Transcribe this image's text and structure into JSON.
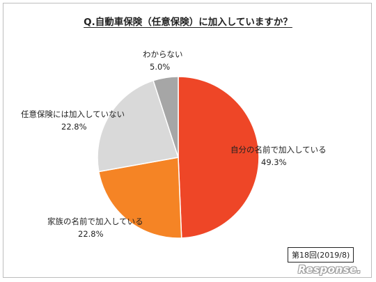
{
  "chart_data": {
    "type": "pie",
    "title": "Q.自動車保険（任意保険）に加入していますか？",
    "start_angle_deg": 0,
    "direction": "clockwise",
    "slices": [
      {
        "label": "自分の名前で加入している",
        "value": 49.3,
        "value_label": "49.3%",
        "color": "#EE4627"
      },
      {
        "label": "家族の名前で加入している",
        "value": 22.8,
        "value_label": "22.8%",
        "color": "#F58425"
      },
      {
        "label": "任意保険には加入していない",
        "value": 22.8,
        "value_label": "22.8%",
        "color": "#D9D9D9"
      },
      {
        "label": "わからない",
        "value": 5.0,
        "value_label": "5.0%",
        "color": "#A6A6A6"
      }
    ],
    "legend": "none"
  },
  "survey_note": "第18回(2019/8)",
  "watermark": "Response."
}
